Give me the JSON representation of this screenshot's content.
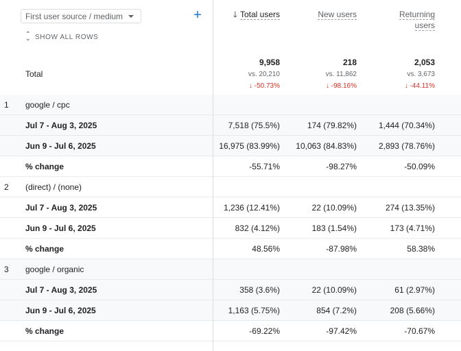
{
  "dimension_select": {
    "label": "First user source / medium"
  },
  "show_all_rows": "SHOW ALL ROWS",
  "total_label": "Total",
  "columns": [
    {
      "label_line1": "Total users",
      "label_line2": "",
      "sorted": true
    },
    {
      "label_line1": "New users",
      "label_line2": ""
    },
    {
      "label_line1": "Returning",
      "label_line2": "users"
    }
  ],
  "totals": [
    {
      "value": "9,958",
      "vs": "vs. 20,210",
      "change": "↓ -50.73%"
    },
    {
      "value": "218",
      "vs": "vs. 11,862",
      "change": "↓ -98.16%"
    },
    {
      "value": "2,053",
      "vs": "vs. 3,673",
      "change": "↓ -44.11%"
    }
  ],
  "groups": [
    {
      "index": "1",
      "name": "google / cpc",
      "rows": [
        {
          "label": "Jul 7 - Aug 3, 2025",
          "c1": "7,518 (75.5%)",
          "c2": "174 (79.82%)",
          "c3": "1,444 (70.34%)"
        },
        {
          "label": "Jun 9 - Jul 6, 2025",
          "c1": "16,975 (83.99%)",
          "c2": "10,063 (84.83%)",
          "c3": "2,893 (78.76%)"
        },
        {
          "label": "% change",
          "c1": "-55.71%",
          "c2": "-98.27%",
          "c3": "-50.09%"
        }
      ]
    },
    {
      "index": "2",
      "name": "(direct) / (none)",
      "rows": [
        {
          "label": "Jul 7 - Aug 3, 2025",
          "c1": "1,236 (12.41%)",
          "c2": "22 (10.09%)",
          "c3": "274 (13.35%)"
        },
        {
          "label": "Jun 9 - Jul 6, 2025",
          "c1": "832 (4.12%)",
          "c2": "183 (1.54%)",
          "c3": "173 (4.71%)"
        },
        {
          "label": "% change",
          "c1": "48.56%",
          "c2": "-87.98%",
          "c3": "58.38%"
        }
      ]
    },
    {
      "index": "3",
      "name": "google / organic",
      "rows": [
        {
          "label": "Jul 7 - Aug 3, 2025",
          "c1": "358 (3.6%)",
          "c2": "22 (10.09%)",
          "c3": "61 (2.97%)"
        },
        {
          "label": "Jun 9 - Jul 6, 2025",
          "c1": "1,163 (5.75%)",
          "c2": "854 (7.2%)",
          "c3": "208 (5.66%)"
        },
        {
          "label": "% change",
          "c1": "-69.22%",
          "c2": "-97.42%",
          "c3": "-70.67%"
        }
      ]
    }
  ],
  "colors": {
    "accent": "#1a73e8",
    "negative": "#d93025",
    "border": "#dadce0",
    "row_shade": "#f8f9fa"
  }
}
